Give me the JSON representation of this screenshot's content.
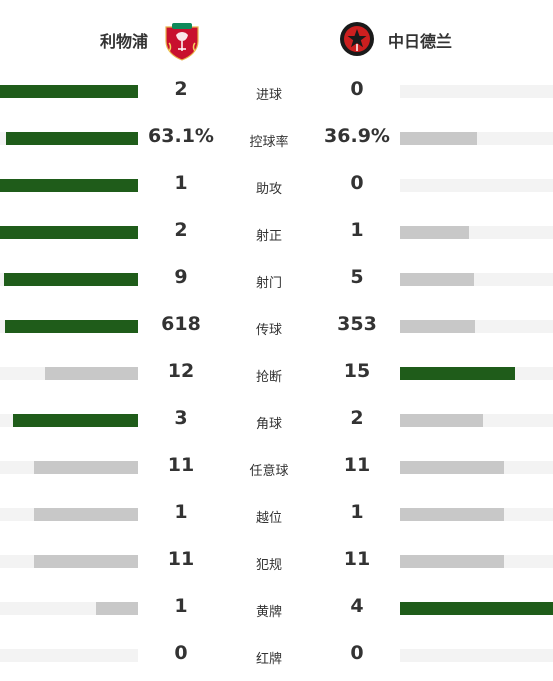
{
  "home": {
    "name": "利物浦",
    "crest_icon": "liverpool-crest-icon",
    "crest_color": "#c8102e"
  },
  "away": {
    "name": "中日德兰",
    "crest_icon": "midtjylland-crest-icon",
    "crest_color": "#cc1f1f"
  },
  "colors": {
    "win": "#1f5c1a",
    "lose": "#c8c8c8",
    "track": "#f3f3f3"
  },
  "stats": [
    {
      "label": "进球",
      "home": "2",
      "away": "0",
      "home_share": 1.0,
      "away_share": 0.0
    },
    {
      "label": "控球率",
      "home": "63.1%",
      "away": "36.9%",
      "home_share": 0.958,
      "away_share": 0.503
    },
    {
      "label": "助攻",
      "home": "1",
      "away": "0",
      "home_share": 1.0,
      "away_share": 0.0
    },
    {
      "label": "射正",
      "home": "2",
      "away": "1",
      "home_share": 1.0,
      "away_share": 0.451
    },
    {
      "label": "射门",
      "home": "9",
      "away": "5",
      "home_share": 0.971,
      "away_share": 0.484
    },
    {
      "label": "传球",
      "home": "618",
      "away": "353",
      "home_share": 0.964,
      "away_share": 0.49
    },
    {
      "label": "抢断",
      "home": "12",
      "away": "15",
      "home_share": 0.674,
      "away_share": 0.752
    },
    {
      "label": "角球",
      "home": "3",
      "away": "2",
      "home_share": 0.906,
      "away_share": 0.542
    },
    {
      "label": "任意球",
      "home": "11",
      "away": "11",
      "home_share": 0.754,
      "away_share": 0.68
    },
    {
      "label": "越位",
      "home": "1",
      "away": "1",
      "home_share": 0.754,
      "away_share": 0.68
    },
    {
      "label": "犯规",
      "home": "11",
      "away": "11",
      "home_share": 0.754,
      "away_share": 0.68
    },
    {
      "label": "黄牌",
      "home": "1",
      "away": "4",
      "home_share": 0.304,
      "away_share": 1.0
    },
    {
      "label": "红牌",
      "home": "0",
      "away": "0",
      "home_share": 0.0,
      "away_share": 0.0
    }
  ]
}
